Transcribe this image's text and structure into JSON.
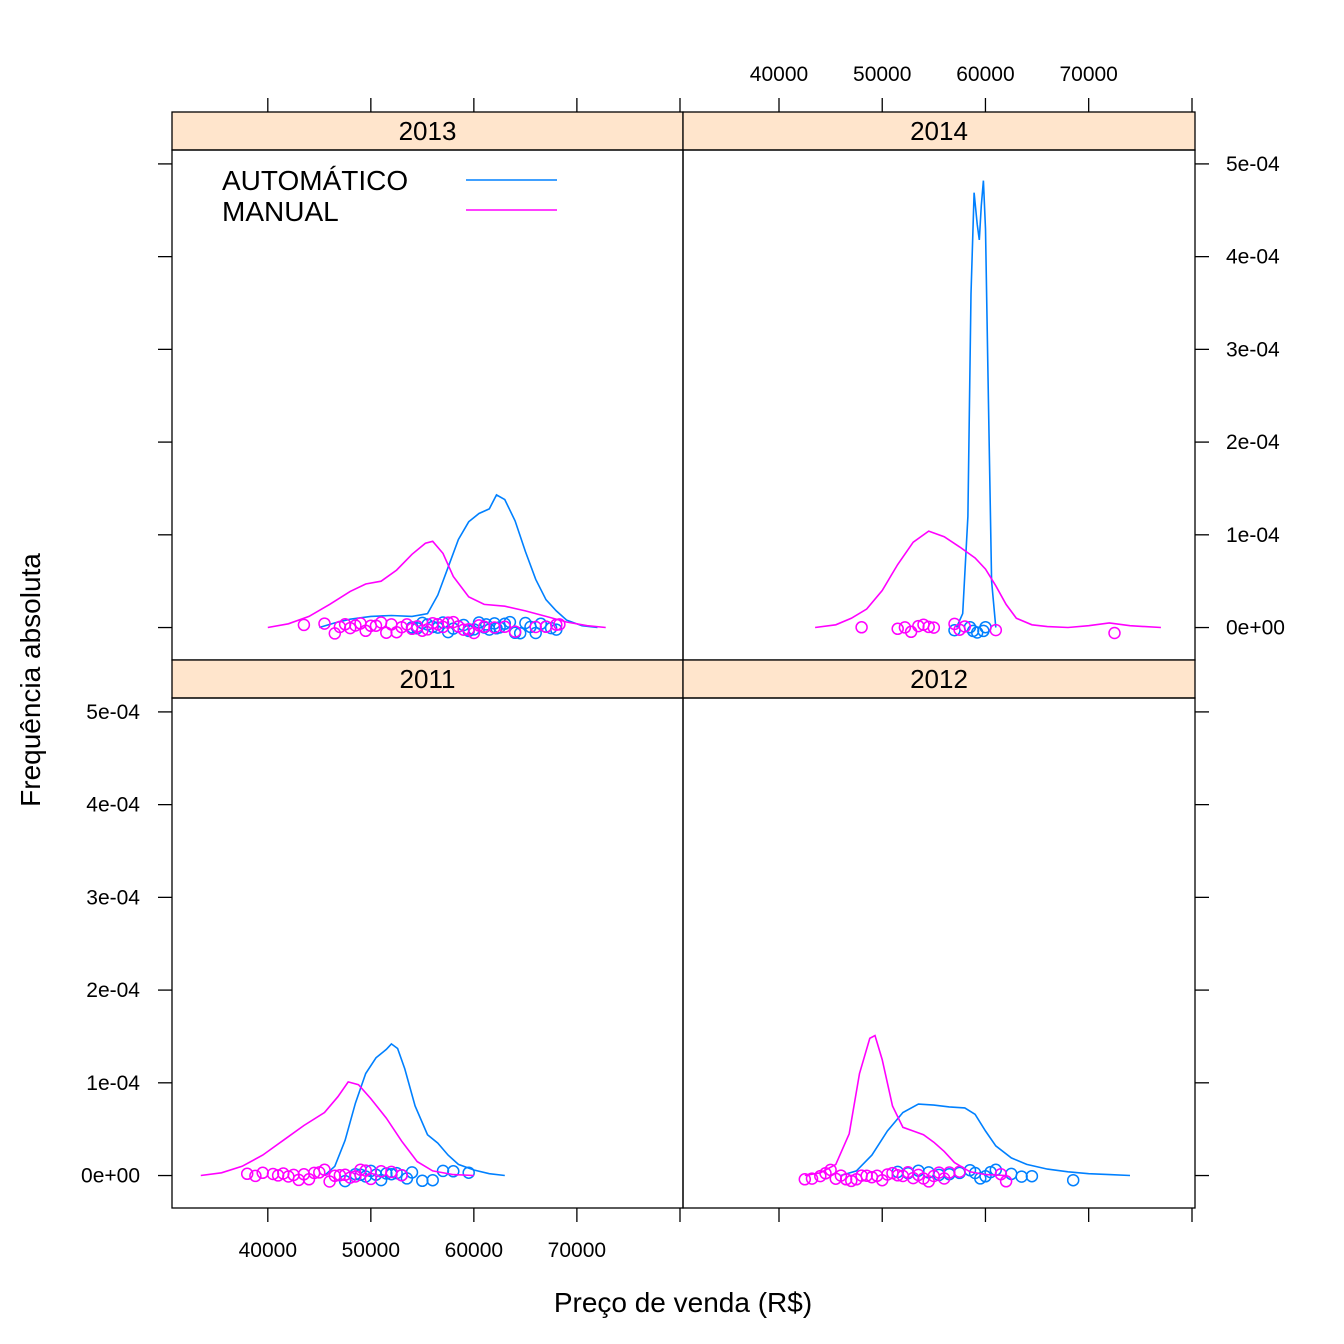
{
  "chart_data": {
    "type": "density",
    "layout": "2x2 lattice, panels: top-left 2013, top-right 2014, bottom-left 2011, bottom-right 2012",
    "xlabel": "Preço de venda (R$)",
    "ylabel": "Frequência absoluta",
    "xlim": [
      30700,
      80300
    ],
    "ylim": [
      -3.5e-05,
      0.000515
    ],
    "x_ticks": [
      40000,
      50000,
      60000,
      70000
    ],
    "x_tick_labels": [
      "40000",
      "50000",
      "60000",
      "70000"
    ],
    "y_ticks": [
      0,
      0.0001,
      0.0002,
      0.0003,
      0.0004,
      0.0005
    ],
    "y_tick_labels": [
      "0e+00",
      "1e-04",
      "2e-04",
      "3e-04",
      "4e-04",
      "5e-04"
    ],
    "legend": [
      {
        "name": "AUTOMÁTICO",
        "color": "#0080ff"
      },
      {
        "name": "MANUAL",
        "color": "#ff00ff"
      }
    ],
    "colors": {
      "automatico": "#0080ff",
      "manual": "#ff00ff",
      "strip": "#ffe5cc"
    },
    "panels": [
      {
        "label": "2013",
        "row": 0,
        "col": 0,
        "series": [
          {
            "name": "AUTOMÁTICO",
            "color": "#0080ff",
            "curve": [
              [
                45000,
                0
              ],
              [
                46500,
                5e-06
              ],
              [
                48000,
                9e-06
              ],
              [
                50000,
                1.2e-05
              ],
              [
                52000,
                1.3e-05
              ],
              [
                54000,
                1.2e-05
              ],
              [
                55500,
                1.5e-05
              ],
              [
                56500,
                3.5e-05
              ],
              [
                57500,
                6.5e-05
              ],
              [
                58500,
                9.5e-05
              ],
              [
                59500,
                0.000114
              ],
              [
                60500,
                0.000123
              ],
              [
                61500,
                0.000128
              ],
              [
                62200,
                0.000143
              ],
              [
                63000,
                0.000138
              ],
              [
                64000,
                0.000115
              ],
              [
                65000,
                8.2e-05
              ],
              [
                66000,
                5.2e-05
              ],
              [
                67000,
                3e-05
              ],
              [
                68000,
                1.8e-05
              ],
              [
                69000,
                8e-06
              ],
              [
                70500,
                2e-06
              ],
              [
                72000,
                0
              ]
            ],
            "points": [
              54000,
              54500,
              55000,
              55500,
              56000,
              56500,
              57000,
              57500,
              58000,
              58500,
              59000,
              59500,
              60000,
              60500,
              61000,
              61200,
              61500,
              62000,
              62200,
              62500,
              63000,
              63500,
              64000,
              64500,
              65000,
              65500,
              66000,
              66500,
              67000,
              67500,
              68000
            ]
          },
          {
            "name": "MANUAL",
            "color": "#ff00ff",
            "curve": [
              [
                40000,
                0
              ],
              [
                42000,
                4e-06
              ],
              [
                44000,
                1.2e-05
              ],
              [
                46000,
                2.5e-05
              ],
              [
                48000,
                3.9e-05
              ],
              [
                49500,
                4.7e-05
              ],
              [
                51000,
                5e-05
              ],
              [
                52500,
                6.2e-05
              ],
              [
                54000,
                7.9e-05
              ],
              [
                55300,
                9.1e-05
              ],
              [
                56000,
                9.3e-05
              ],
              [
                57000,
                8e-05
              ],
              [
                58000,
                5.5e-05
              ],
              [
                59500,
                3.3e-05
              ],
              [
                61000,
                2.5e-05
              ],
              [
                63000,
                2.3e-05
              ],
              [
                65000,
                1.8e-05
              ],
              [
                67000,
                1.2e-05
              ],
              [
                69000,
                6e-06
              ],
              [
                71000,
                2e-06
              ],
              [
                72800,
                0
              ]
            ],
            "points": [
              43500,
              45500,
              46500,
              47000,
              47500,
              48000,
              48500,
              49000,
              49500,
              50000,
              50500,
              51000,
              51500,
              52000,
              52500,
              53000,
              53500,
              54000,
              54500,
              55000,
              55500,
              56000,
              56500,
              57000,
              57500,
              58000,
              58500,
              59000,
              59500,
              60000,
              60500,
              61000,
              62000,
              63000,
              64000,
              66000,
              67000,
              68000,
              68300
            ]
          }
        ]
      },
      {
        "label": "2014",
        "row": 0,
        "col": 1,
        "series": [
          {
            "name": "AUTOMÁTICO",
            "color": "#0080ff",
            "curve": [
              [
                57200,
                0
              ],
              [
                57800,
                1.5e-05
              ],
              [
                58300,
                0.00012
              ],
              [
                58600,
                0.00036
              ],
              [
                58900,
                0.000469
              ],
              [
                59200,
                0.000435
              ],
              [
                59400,
                0.000418
              ],
              [
                59600,
                0.000455
              ],
              [
                59800,
                0.000482
              ],
              [
                60000,
                0.00043
              ],
              [
                60300,
                0.00024
              ],
              [
                60600,
                5e-05
              ],
              [
                61000,
                0
              ]
            ],
            "points": [
              57000,
              58500,
              58800,
              59200,
              59800,
              60000
            ]
          },
          {
            "name": "MANUAL",
            "color": "#ff00ff",
            "curve": [
              [
                43500,
                0
              ],
              [
                45500,
                3e-06
              ],
              [
                47000,
                1e-05
              ],
              [
                48500,
                2e-05
              ],
              [
                50000,
                4e-05
              ],
              [
                51500,
                6.8e-05
              ],
              [
                53000,
                9.2e-05
              ],
              [
                54500,
                0.000104
              ],
              [
                56000,
                9.8e-05
              ],
              [
                57500,
                8.7e-05
              ],
              [
                59000,
                7.5e-05
              ],
              [
                60000,
                6.3e-05
              ],
              [
                61000,
                4.5e-05
              ],
              [
                62000,
                2.5e-05
              ],
              [
                63000,
                1e-05
              ],
              [
                64500,
                3e-06
              ],
              [
                66000,
                1e-06
              ],
              [
                68000,
                0
              ],
              [
                70000,
                2e-06
              ],
              [
                72000,
                5e-06
              ],
              [
                74000,
                2e-06
              ],
              [
                77000,
                0
              ]
            ],
            "points": [
              48000,
              51500,
              52200,
              52800,
              53500,
              54000,
              54500,
              55000,
              57000,
              57500,
              58000,
              61000,
              72500
            ]
          }
        ]
      },
      {
        "label": "2011",
        "row": 1,
        "col": 0,
        "series": [
          {
            "name": "AUTOMÁTICO",
            "color": "#0080ff",
            "curve": [
              [
                45500,
                0
              ],
              [
                46500,
                1e-05
              ],
              [
                47500,
                3.8e-05
              ],
              [
                48500,
                7.8e-05
              ],
              [
                49500,
                0.00011
              ],
              [
                50500,
                0.000127
              ],
              [
                51500,
                0.000136
              ],
              [
                52000,
                0.000142
              ],
              [
                52600,
                0.000137
              ],
              [
                53300,
                0.000115
              ],
              [
                54300,
                7.5e-05
              ],
              [
                55500,
                4.4e-05
              ],
              [
                56500,
                3.5e-05
              ],
              [
                57500,
                2.2e-05
              ],
              [
                58500,
                1.2e-05
              ],
              [
                60000,
                6e-06
              ],
              [
                61500,
                2e-06
              ],
              [
                63000,
                0
              ]
            ],
            "points": [
              47500,
              48500,
              49000,
              49500,
              50000,
              50500,
              51000,
              51500,
              52000,
              52500,
              53000,
              53500,
              54000,
              55000,
              56000,
              57000,
              58000,
              59500
            ]
          },
          {
            "name": "MANUAL",
            "color": "#ff00ff",
            "curve": [
              [
                33500,
                0
              ],
              [
                35500,
                3e-06
              ],
              [
                37500,
                1e-05
              ],
              [
                39500,
                2.2e-05
              ],
              [
                41500,
                3.8e-05
              ],
              [
                43500,
                5.4e-05
              ],
              [
                45500,
                6.8e-05
              ],
              [
                46800,
                8.5e-05
              ],
              [
                47800,
                0.000101
              ],
              [
                48800,
                9.8e-05
              ],
              [
                50000,
                8.3e-05
              ],
              [
                51500,
                6.2e-05
              ],
              [
                53000,
                3.7e-05
              ],
              [
                54500,
                1.5e-05
              ],
              [
                56000,
                5e-06
              ],
              [
                58000,
                1e-06
              ],
              [
                60000,
                0
              ]
            ],
            "points": [
              38000,
              38800,
              39500,
              40500,
              41000,
              41500,
              42000,
              42500,
              43000,
              43500,
              44000,
              44500,
              45000,
              45500,
              46000,
              46500,
              47000,
              47500,
              48000,
              48500,
              49000,
              49500,
              50000,
              51000,
              52000,
              53000
            ]
          }
        ]
      },
      {
        "label": "2012",
        "row": 1,
        "col": 1,
        "series": [
          {
            "name": "AUTOMÁTICO",
            "color": "#0080ff",
            "curve": [
              [
                46000,
                0
              ],
              [
                47500,
                5e-06
              ],
              [
                49000,
                2.2e-05
              ],
              [
                50500,
                4.8e-05
              ],
              [
                52000,
                6.8e-05
              ],
              [
                53500,
                7.7e-05
              ],
              [
                55000,
                7.6e-05
              ],
              [
                56500,
                7.4e-05
              ],
              [
                58000,
                7.3e-05
              ],
              [
                59000,
                6.6e-05
              ],
              [
                60000,
                4.8e-05
              ],
              [
                61000,
                3.2e-05
              ],
              [
                62500,
                1.9e-05
              ],
              [
                64000,
                1.2e-05
              ],
              [
                66000,
                7e-06
              ],
              [
                68000,
                4e-06
              ],
              [
                70000,
                2e-06
              ],
              [
                72000,
                1e-06
              ],
              [
                74000,
                0
              ]
            ],
            "points": [
              51500,
              52500,
              53500,
              54500,
              55500,
              56500,
              57500,
              58500,
              59000,
              59500,
              60000,
              60500,
              61000,
              62500,
              63500,
              64500,
              68500
            ]
          },
          {
            "name": "MANUAL",
            "color": "#ff00ff",
            "curve": [
              [
                42500,
                0
              ],
              [
                44000,
                3e-06
              ],
              [
                45500,
                1.2e-05
              ],
              [
                46800,
                4.5e-05
              ],
              [
                47800,
                0.00011
              ],
              [
                48800,
                0.000148
              ],
              [
                49300,
                0.000151
              ],
              [
                50000,
                0.000125
              ],
              [
                51000,
                7.5e-05
              ],
              [
                52000,
                5.2e-05
              ],
              [
                53000,
                4.8e-05
              ],
              [
                54000,
                4.4e-05
              ],
              [
                55000,
                3.6e-05
              ],
              [
                56000,
                2.6e-05
              ],
              [
                57000,
                1.4e-05
              ],
              [
                58500,
                4e-06
              ],
              [
                60000,
                1e-06
              ],
              [
                62000,
                0
              ]
            ],
            "points": [
              42500,
              43200,
              44000,
              44500,
              45000,
              45500,
              46000,
              46500,
              47000,
              47500,
              48000,
              48500,
              49000,
              49500,
              50000,
              50500,
              51000,
              51500,
              52000,
              52500,
              53000,
              53500,
              54000,
              54500,
              55000,
              55500,
              56000,
              56500,
              57500,
              61500,
              62000
            ]
          }
        ]
      }
    ]
  }
}
